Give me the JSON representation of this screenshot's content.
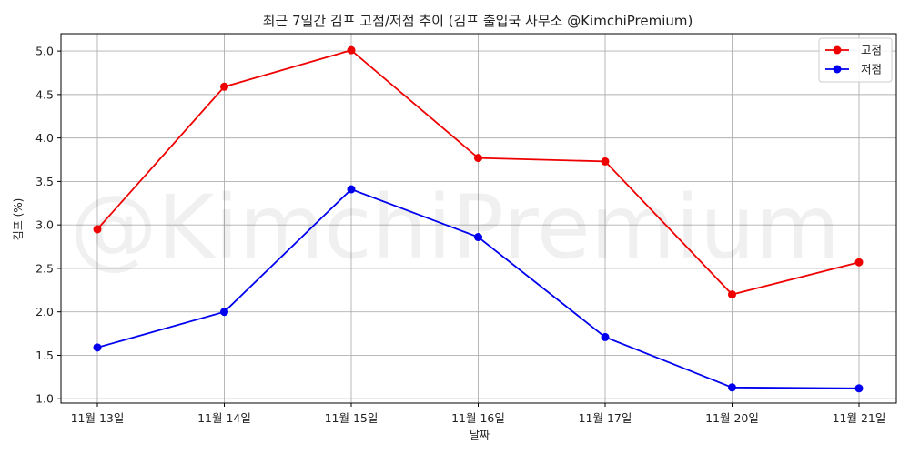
{
  "chart_data": {
    "type": "line",
    "title": "최근 7일간 김프 고점/저점 추이 (김프 출입국 사무소 @KimchiPremium)",
    "xlabel": "날짜",
    "ylabel": "김프 (%)",
    "watermark": "@KimchiPremium",
    "categories": [
      "11월 13일",
      "11월 14일",
      "11월 15일",
      "11월 16일",
      "11월 17일",
      "11월 20일",
      "11월 21일"
    ],
    "ylim": [
      0.95,
      5.2
    ],
    "yticks": [
      1.0,
      1.5,
      2.0,
      2.5,
      3.0,
      3.5,
      4.0,
      4.5,
      5.0
    ],
    "ytick_labels": [
      "1.0",
      "1.5",
      "2.0",
      "2.5",
      "3.0",
      "3.5",
      "4.0",
      "4.5",
      "5.0"
    ],
    "grid": true,
    "legend_position": "top-right",
    "series": [
      {
        "name": "고점",
        "color": "#ee0000",
        "values": [
          2.95,
          4.59,
          5.01,
          3.77,
          3.73,
          2.2,
          2.57
        ]
      },
      {
        "name": "저점",
        "color": "#0000ee",
        "values": [
          1.59,
          2.0,
          3.41,
          2.86,
          1.71,
          1.13,
          1.12
        ]
      }
    ]
  }
}
